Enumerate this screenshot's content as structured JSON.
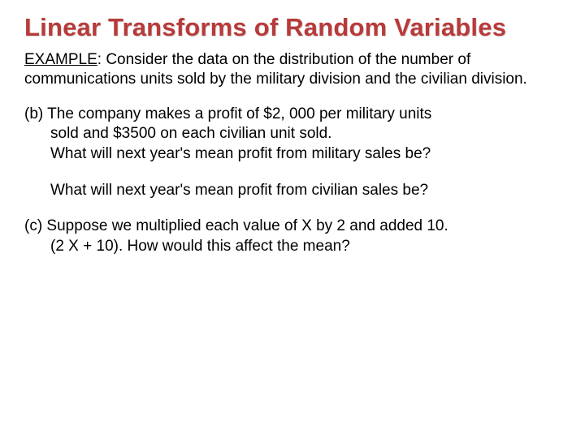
{
  "title": "Linear Transforms of Random Variables",
  "example_label": "EXAMPLE",
  "example_text": ": Consider the data on the distribution of the number of communications units sold by the military division and the civilian division.",
  "part_b_marker": "(b)",
  "part_b_line1": "The company makes a profit of $2, 000 per military units",
  "part_b_line2": "sold and $3500 on each civilian unit sold.",
  "part_b_line3": "What will next year's mean profit from military sales be?",
  "part_b_q2": "What will next year's mean profit from civilian sales be?",
  "part_c_marker": "(c)",
  "part_c_line1": " Suppose we multiplied each value of X by 2 and added 10.",
  "part_c_line2": "(2 X + 10).  How would this affect the mean?",
  "colors": {
    "title_color": "#b83a3a",
    "body_color": "#000000",
    "background": "#ffffff"
  },
  "fontsizes": {
    "title": 31,
    "body": 19
  }
}
